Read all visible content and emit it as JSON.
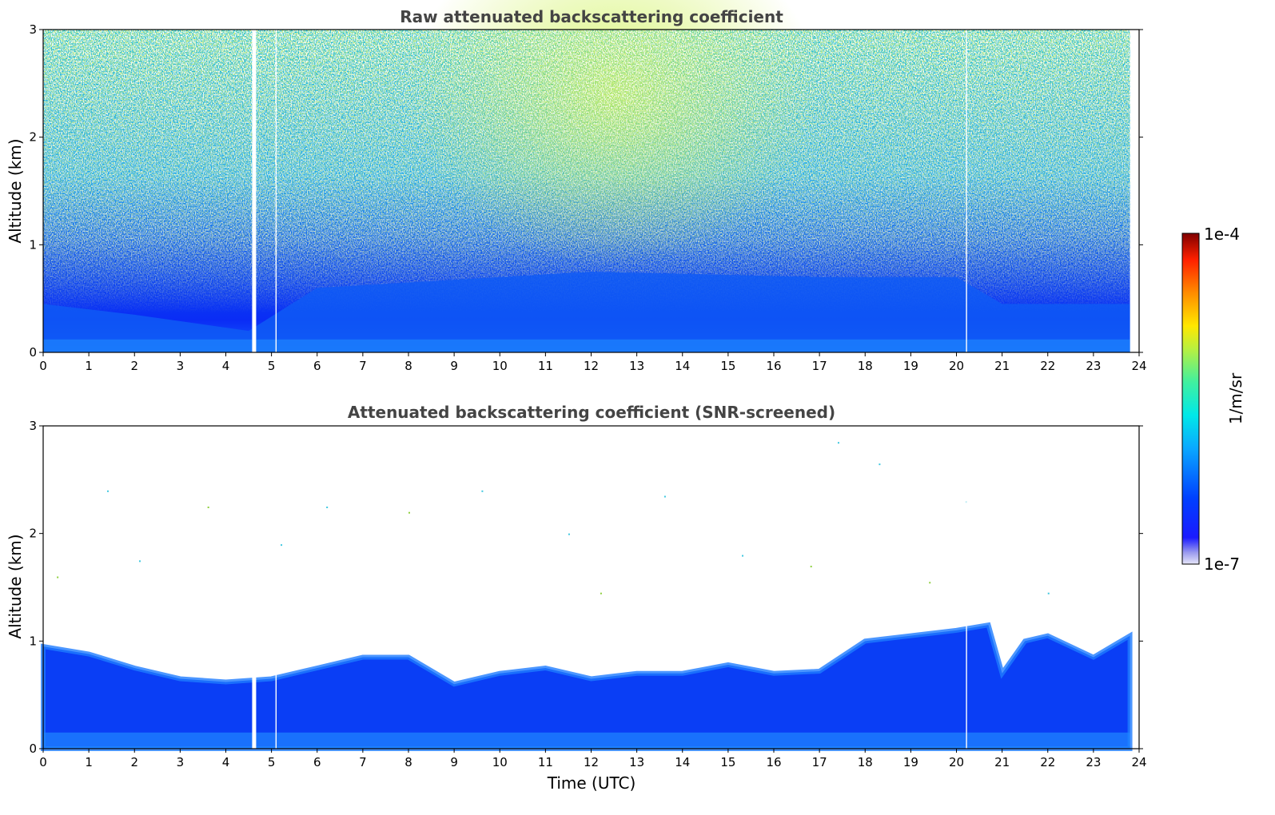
{
  "chart_data": [
    {
      "type": "heatmap",
      "title": "Raw attenuated backscattering coefficient",
      "xlabel": "",
      "ylabel": "Altitude (km)",
      "xlim": [
        0,
        24
      ],
      "ylim": [
        0,
        3
      ],
      "xticks": [
        "0",
        "1",
        "2",
        "3",
        "4",
        "5",
        "6",
        "7",
        "8",
        "9",
        "10",
        "11",
        "12",
        "13",
        "14",
        "15",
        "16",
        "17",
        "18",
        "19",
        "20",
        "21",
        "22",
        "23",
        "24"
      ],
      "yticks": [
        "0",
        "1",
        "2",
        "3"
      ],
      "data_end_hour": 23.8,
      "data_gaps_hours": [
        4.62,
        5.1,
        20.22
      ],
      "boundary_layer_top_km": [
        {
          "x": 0,
          "y": 0.45
        },
        {
          "x": 2,
          "y": 0.35
        },
        {
          "x": 4.5,
          "y": 0.2
        },
        {
          "x": 6,
          "y": 0.6
        },
        {
          "x": 12,
          "y": 0.75
        },
        {
          "x": 17,
          "y": 0.7
        },
        {
          "x": 20,
          "y": 0.7
        },
        {
          "x": 21,
          "y": 0.45
        },
        {
          "x": 23.8,
          "y": 0.45
        }
      ],
      "note_region": "highest background values around 9–17 UTC above 1.5 km"
    },
    {
      "type": "heatmap",
      "title": "Attenuated backscattering coefficient (SNR-screened)",
      "xlabel": "Time (UTC)",
      "ylabel": "Altitude (km)",
      "xlim": [
        0,
        24
      ],
      "ylim": [
        0,
        3
      ],
      "xticks": [
        "0",
        "1",
        "2",
        "3",
        "4",
        "5",
        "6",
        "7",
        "8",
        "9",
        "10",
        "11",
        "12",
        "13",
        "14",
        "15",
        "16",
        "17",
        "18",
        "19",
        "20",
        "21",
        "22",
        "23",
        "24"
      ],
      "yticks": [
        "0",
        "1",
        "2",
        "3"
      ],
      "data_end_hour": 23.8,
      "data_gaps_hours": [
        4.62,
        5.1,
        20.22
      ],
      "screened_top_km": [
        {
          "x": 0,
          "y": 0.95
        },
        {
          "x": 1,
          "y": 0.88
        },
        {
          "x": 2,
          "y": 0.75
        },
        {
          "x": 3,
          "y": 0.65
        },
        {
          "x": 4,
          "y": 0.62
        },
        {
          "x": 5,
          "y": 0.65
        },
        {
          "x": 6,
          "y": 0.75
        },
        {
          "x": 7,
          "y": 0.85
        },
        {
          "x": 8,
          "y": 0.85
        },
        {
          "x": 9,
          "y": 0.6
        },
        {
          "x": 10,
          "y": 0.7
        },
        {
          "x": 11,
          "y": 0.75
        },
        {
          "x": 12,
          "y": 0.65
        },
        {
          "x": 13,
          "y": 0.7
        },
        {
          "x": 14,
          "y": 0.7
        },
        {
          "x": 15,
          "y": 0.78
        },
        {
          "x": 16,
          "y": 0.7
        },
        {
          "x": 17,
          "y": 0.72
        },
        {
          "x": 18,
          "y": 1.0
        },
        {
          "x": 19,
          "y": 1.05
        },
        {
          "x": 20,
          "y": 1.1
        },
        {
          "x": 20.7,
          "y": 1.15
        },
        {
          "x": 21,
          "y": 0.7
        },
        {
          "x": 21.5,
          "y": 1.0
        },
        {
          "x": 22,
          "y": 1.05
        },
        {
          "x": 23,
          "y": 0.85
        },
        {
          "x": 23.8,
          "y": 1.05
        }
      ]
    }
  ],
  "colorbar": {
    "label": "1/m/sr",
    "max_label": "1e-4",
    "min_label": "1e-7",
    "scale": "log",
    "range": [
      1e-07,
      0.0001
    ],
    "colormap": "jet"
  }
}
